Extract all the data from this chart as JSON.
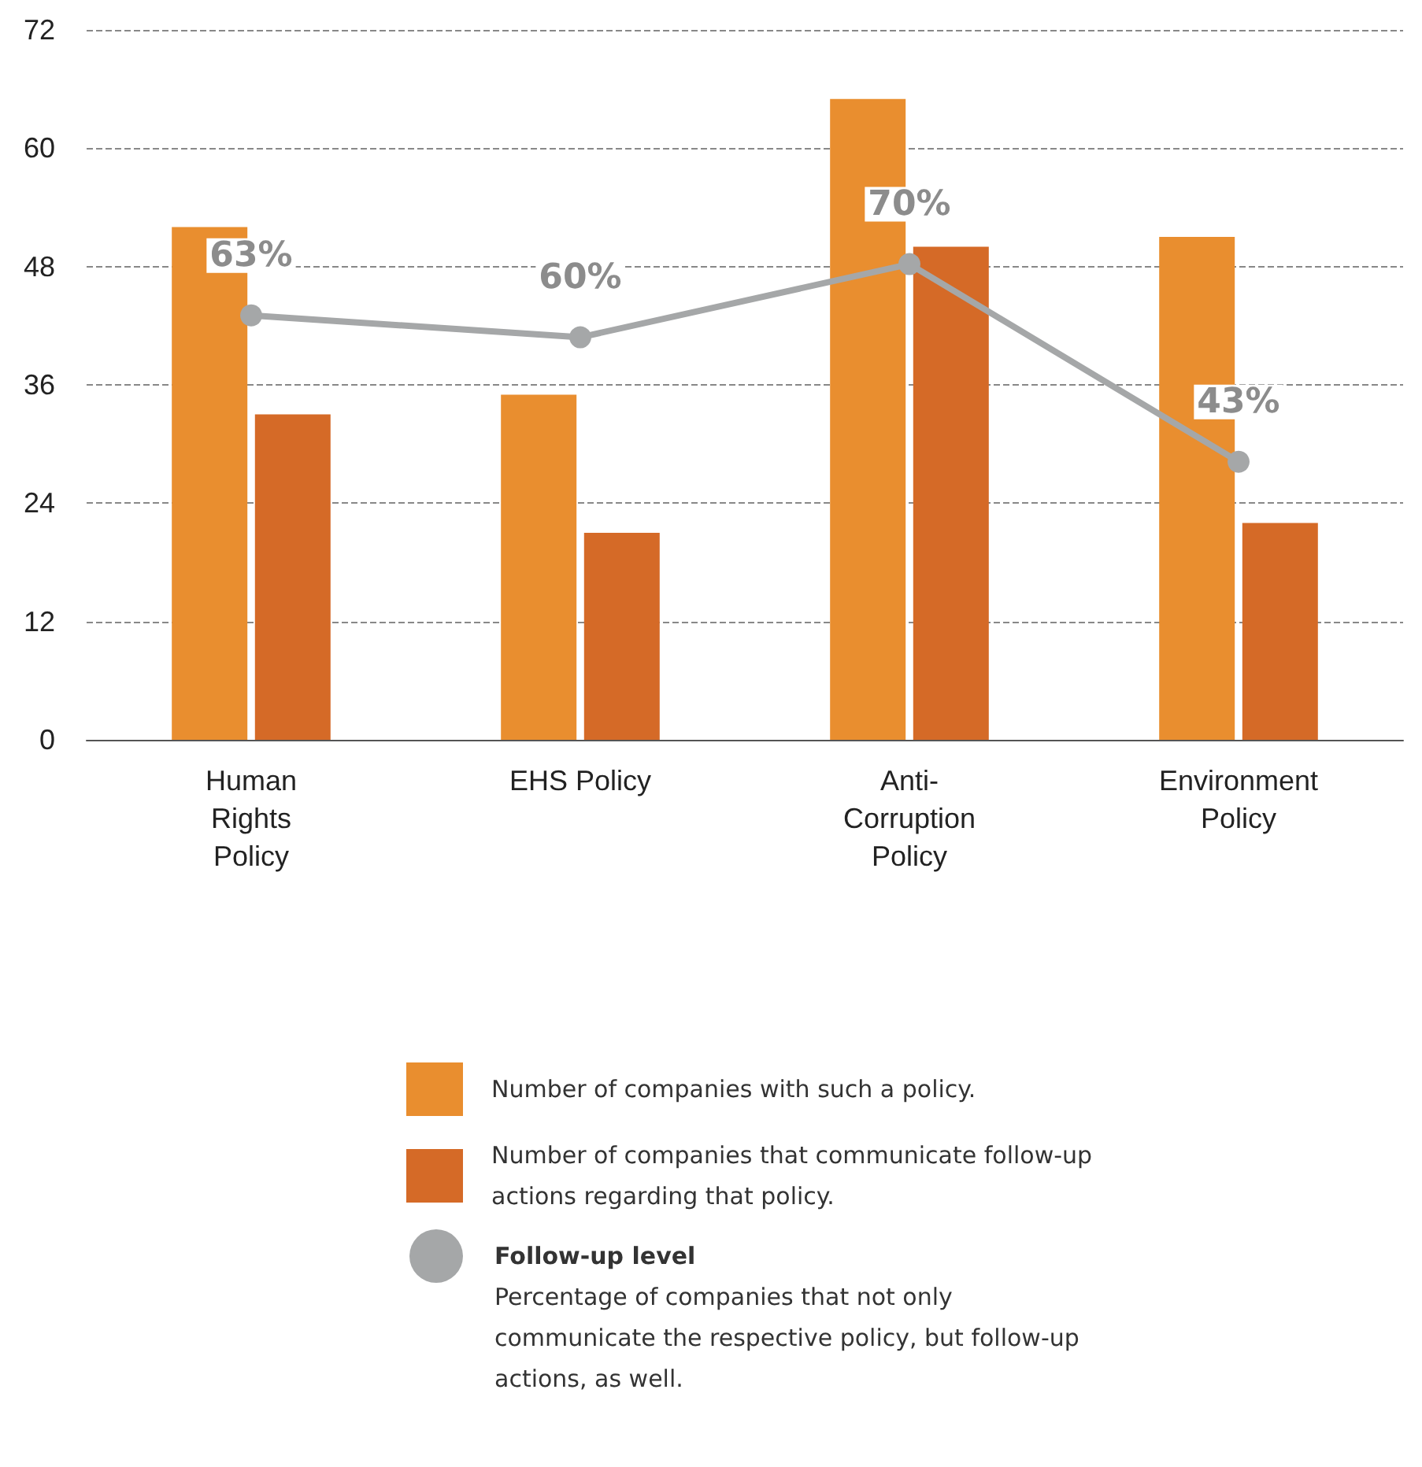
{
  "chart_data": {
    "type": "bar",
    "categories": [
      "Human Rights Policy",
      "EHS Policy",
      "Anti-Corruption Policy",
      "Environment Policy"
    ],
    "series": [
      {
        "name": "Number of companies with such a policy.",
        "color": "#e98e2f",
        "values": [
          52,
          35,
          65,
          51
        ]
      },
      {
        "name": "Number of companies that communicate follow-up actions regarding that policy.",
        "color": "#d56a27",
        "values": [
          33,
          21,
          50,
          22
        ]
      },
      {
        "name": "Follow-up level",
        "type": "line",
        "axis": "y2",
        "color": "#a5a7a8",
        "values": [
          63,
          60,
          70,
          43
        ],
        "value_labels": [
          "63%",
          "60%",
          "70%",
          "43%"
        ]
      }
    ],
    "ylim": [
      0,
      72
    ],
    "yticks": [
      0,
      12,
      24,
      36,
      48,
      60,
      72
    ],
    "y2lim": [
      5,
      102
    ],
    "grid": "y",
    "legend": "bottom",
    "marker": "circle",
    "line_style": "solid",
    "annotations": [
      "Percentage of companies that not only communicate the respective policy, but follow-up actions, as well."
    ]
  }
}
